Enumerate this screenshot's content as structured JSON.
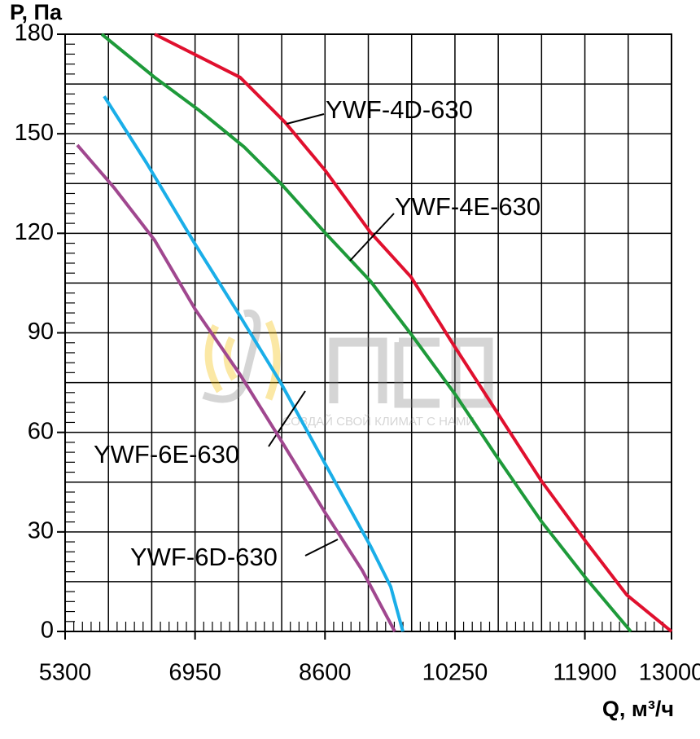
{
  "chart_data": {
    "type": "line",
    "y_label": "P, Па",
    "x_label": "Q, м³/ч",
    "watermark": "СОЗДАЙ СВОЙ КЛИМАТ С НАМИ",
    "xlim": [
      5300,
      13000
    ],
    "ylim": [
      0,
      180
    ],
    "xticks": [
      5300,
      6950,
      8600,
      10250,
      11900,
      13000
    ],
    "yticks": [
      0,
      30,
      60,
      90,
      120,
      150,
      180
    ],
    "x_grid": [
      5300,
      5850,
      6400,
      6950,
      7500,
      8050,
      8600,
      9150,
      9700,
      10250,
      10800,
      11350,
      11900,
      12450,
      13000
    ],
    "y_grid": [
      0,
      15,
      30,
      45,
      60,
      75,
      90,
      105,
      120,
      135,
      150,
      165,
      180
    ],
    "grid": true,
    "series": [
      {
        "name": "YWF-4D-630",
        "color": "#e0102e",
        "x": [
          6437,
          7522,
          8091,
          8607,
          9176,
          9693,
          10210,
          10778,
          11347,
          11915,
          12432,
          13000
        ],
        "values": [
          180,
          167,
          153.5,
          138.8,
          120.3,
          106.8,
          87.2,
          66.3,
          45.4,
          27,
          11,
          0
        ]
      },
      {
        "name": "YWF-4E-630",
        "color": "#1e9a3a",
        "x": [
          5765,
          6437,
          7005,
          7574,
          8039,
          8607,
          9176,
          9693,
          10261,
          10778,
          11347,
          11915,
          12483
        ],
        "values": [
          180,
          167,
          157,
          146,
          135,
          120,
          105.6,
          89.6,
          71.2,
          52.8,
          33.2,
          16,
          0
        ]
      },
      {
        "name": "YWF-6E-630",
        "color": "#1aaee8",
        "x": [
          5796,
          6334,
          6954,
          7470,
          8039,
          8607,
          9176,
          9434,
          9589
        ],
        "values": [
          161.3,
          141.2,
          116.6,
          97,
          74.9,
          50.3,
          25.8,
          13.5,
          0
        ]
      },
      {
        "name": "YWF-6D-630",
        "color": "#a0478f",
        "x": [
          5455,
          5920,
          6437,
          6954,
          7522,
          8039,
          8607,
          9073,
          9486
        ],
        "values": [
          146.6,
          133.8,
          117.9,
          97,
          77.4,
          57.7,
          35.6,
          18.4,
          0
        ]
      }
    ]
  }
}
